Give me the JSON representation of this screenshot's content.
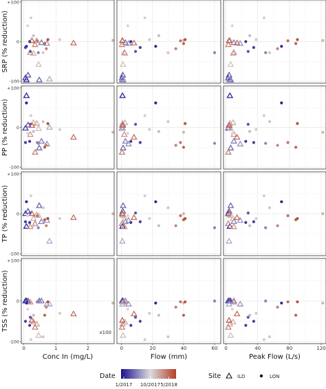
{
  "chart_data": {
    "type": "scatter",
    "layout": "facet-grid",
    "rows": [
      {
        "key": "SRP",
        "ylabel": "SRP (% reduction)"
      },
      {
        "key": "PP",
        "ylabel": "PP (% reduction)"
      },
      {
        "key": "TP",
        "ylabel": "TP (% reduction)"
      },
      {
        "key": "TSS",
        "ylabel": "TSS (% reduction)"
      }
    ],
    "ylim": [
      -105,
      105
    ],
    "yticks": [
      -100,
      0,
      100
    ],
    "ytick_labels": [
      "-100",
      "0",
      "+100"
    ],
    "columns": [
      {
        "key": "conc",
        "xlabel": "Conc In (mg/L)",
        "xlim": [
          -0.08,
          2.82
        ],
        "xticks": [
          0,
          1,
          2
        ],
        "xtick_labels": [
          "0",
          "1",
          "2"
        ]
      },
      {
        "key": "flow",
        "xlabel": "Flow (mm)",
        "xlim": [
          -3,
          64
        ],
        "xticks": [
          0,
          20,
          40,
          60
        ],
        "xtick_labels": [
          "0",
          "20",
          "40",
          "60"
        ]
      },
      {
        "key": "peak",
        "xlabel": "Peak Flow (L/s)",
        "xlim": [
          -3,
          126
        ],
        "xticks": [
          0,
          40,
          80,
          120
        ],
        "xtick_labels": [
          "0",
          "40",
          "80",
          "120"
        ]
      }
    ],
    "annotations": [
      {
        "row": "TSS",
        "column": "conc",
        "text": "x100",
        "position": "bottom-right"
      }
    ],
    "color_scale": {
      "title": "Date",
      "low": "#1a0f91",
      "mid": "#dcdcdc",
      "high": "#b3402a",
      "tick_labels": [
        "1/2017",
        "10/2017",
        "5/2018"
      ],
      "tick_fractions": [
        0.05,
        0.53,
        0.87
      ]
    },
    "shape_legend": {
      "title": "Site",
      "entries": [
        {
          "label": "ILD",
          "shape": "triangle"
        },
        {
          "label": "LON",
          "shape": "circle"
        }
      ]
    },
    "series": [
      {
        "name": "ILD",
        "shape": "triangle",
        "points": [
          {
            "c": 0.05,
            "conc": 0.08,
            "flow": 0.6,
            "peak": 5,
            "SRP": -97,
            "PP": 80,
            "TP": -32,
            "TSS": 0
          },
          {
            "c": 0.12,
            "conc": 0.05,
            "flow": 0.4,
            "peak": 3,
            "SRP": -92,
            "PP": -2,
            "TP": 0,
            "TSS": 0
          },
          {
            "c": 0.18,
            "conc": 0.13,
            "flow": 0.8,
            "peak": 4,
            "SRP": -85,
            "PP": 6,
            "TP": 6,
            "TSS": 0
          },
          {
            "c": 0.22,
            "conc": 0.48,
            "flow": 1.0,
            "peak": 6,
            "SRP": -97,
            "PP": -52,
            "TP": 20,
            "TSS": 0
          },
          {
            "c": 0.28,
            "conc": 0.55,
            "flow": 2.5,
            "peak": 10,
            "SRP": -3,
            "PP": -35,
            "TP": -20,
            "TSS": 0
          },
          {
            "c": 0.34,
            "conc": 0.72,
            "flow": 4.5,
            "peak": 18,
            "SRP": -5,
            "PP": -42,
            "TP": -17,
            "TSS": -8
          },
          {
            "c": 0.4,
            "conc": 0.8,
            "flow": 0.5,
            "peak": 4,
            "SRP": -95,
            "PP": 0,
            "TP": -69,
            "TSS": -8
          },
          {
            "c": 0.62,
            "conc": 0.46,
            "flow": 0.9,
            "peak": 6,
            "SRP": -58,
            "PP": -3,
            "TP": -5,
            "TSS": -85
          },
          {
            "c": 0.66,
            "conc": 0.3,
            "flow": 2.2,
            "peak": 9,
            "SRP": -30,
            "PP": 12,
            "TP": -12,
            "TSS": -52
          },
          {
            "c": 0.7,
            "conc": 0.4,
            "flow": 0.7,
            "peak": 5,
            "SRP": 2,
            "PP": 10,
            "TP": -3,
            "TSS": -57
          },
          {
            "c": 0.74,
            "conc": 0.2,
            "flow": 1.8,
            "peak": 10,
            "SRP": -28,
            "PP": -18,
            "TP": -33,
            "TSS": -3
          },
          {
            "c": 0.8,
            "conc": 0.35,
            "flow": 0.3,
            "peak": 3,
            "SRP": -8,
            "PP": -63,
            "TP": -25,
            "TSS": -65
          },
          {
            "c": 0.85,
            "conc": 1.55,
            "flow": 8,
            "peak": 14,
            "SRP": -4,
            "PP": -25,
            "TP": -10,
            "TSS": -32
          },
          {
            "c": 0.9,
            "conc": 0.25,
            "flow": 0.5,
            "peak": 4,
            "SRP": 2,
            "PP": 5,
            "TP": 0,
            "TSS": -48
          }
        ]
      },
      {
        "name": "LON",
        "shape": "circle",
        "points": [
          {
            "c": 0.05,
            "conc": 0.08,
            "flow": 22,
            "peak": 70,
            "SRP": -12,
            "PP": 62,
            "TP": 30,
            "TSS": -5
          },
          {
            "c": 0.1,
            "conc": 0.18,
            "flow": 6,
            "peak": 25,
            "SRP": 0,
            "PP": -35,
            "TP": -22,
            "TSS": -60
          },
          {
            "c": 0.12,
            "conc": 0.05,
            "flow": 12,
            "peak": 35,
            "SRP": -15,
            "PP": -38,
            "TP": -20,
            "TSS": -50
          },
          {
            "c": 0.18,
            "conc": 0.2,
            "flow": 9,
            "peak": 28,
            "SRP": -25,
            "PP": 8,
            "TP": 2,
            "TSS": -40
          },
          {
            "c": 0.5,
            "conc": 0.22,
            "flow": 15,
            "peak": 48,
            "SRP": 60,
            "PP": 30,
            "TP": 45,
            "TSS": -95
          },
          {
            "c": 0.45,
            "conc": 0.3,
            "flow": 24,
            "peak": 30,
            "SRP": 15,
            "PP": -10,
            "TP": -30,
            "TSS": -35
          },
          {
            "c": 0.55,
            "conc": 0.12,
            "flow": 4,
            "peak": 8,
            "SRP": 40,
            "PP": -15,
            "TP": -5,
            "TSS": -20
          },
          {
            "c": 0.6,
            "conc": 0.6,
            "flow": 30,
            "peak": 55,
            "SRP": -28,
            "PP": 15,
            "TP": 15,
            "TSS": -88
          },
          {
            "c": 0.58,
            "conc": 1.12,
            "flow": 18,
            "peak": 38,
            "SRP": 5,
            "PP": -5,
            "TP": -12,
            "TSS": -30
          },
          {
            "c": 0.65,
            "conc": 2.78,
            "flow": 40,
            "peak": 122,
            "SRP": 3,
            "PP": -12,
            "TP": 0,
            "TSS": -5
          },
          {
            "c": 0.8,
            "conc": 0.7,
            "flow": 35,
            "peak": 65,
            "SRP": -18,
            "PP": -45,
            "TP": -30,
            "TSS": -15
          },
          {
            "c": 0.85,
            "conc": 0.42,
            "flow": 38,
            "peak": 78,
            "SRP": 2,
            "PP": -38,
            "TP": -5,
            "TSS": -2
          },
          {
            "c": 0.9,
            "conc": 0.65,
            "flow": 40,
            "peak": 88,
            "SRP": -5,
            "PP": -50,
            "TP": -15,
            "TSS": -35
          },
          {
            "c": 0.95,
            "conc": 0.75,
            "flow": 41,
            "peak": 90,
            "SRP": 5,
            "PP": 10,
            "TP": -12,
            "TSS": -2
          },
          {
            "c": 0.3,
            "conc": 0.45,
            "flow": 60,
            "peak": 50,
            "SRP": -28,
            "PP": -40,
            "TP": -35,
            "TSS": 0
          }
        ]
      }
    ]
  }
}
